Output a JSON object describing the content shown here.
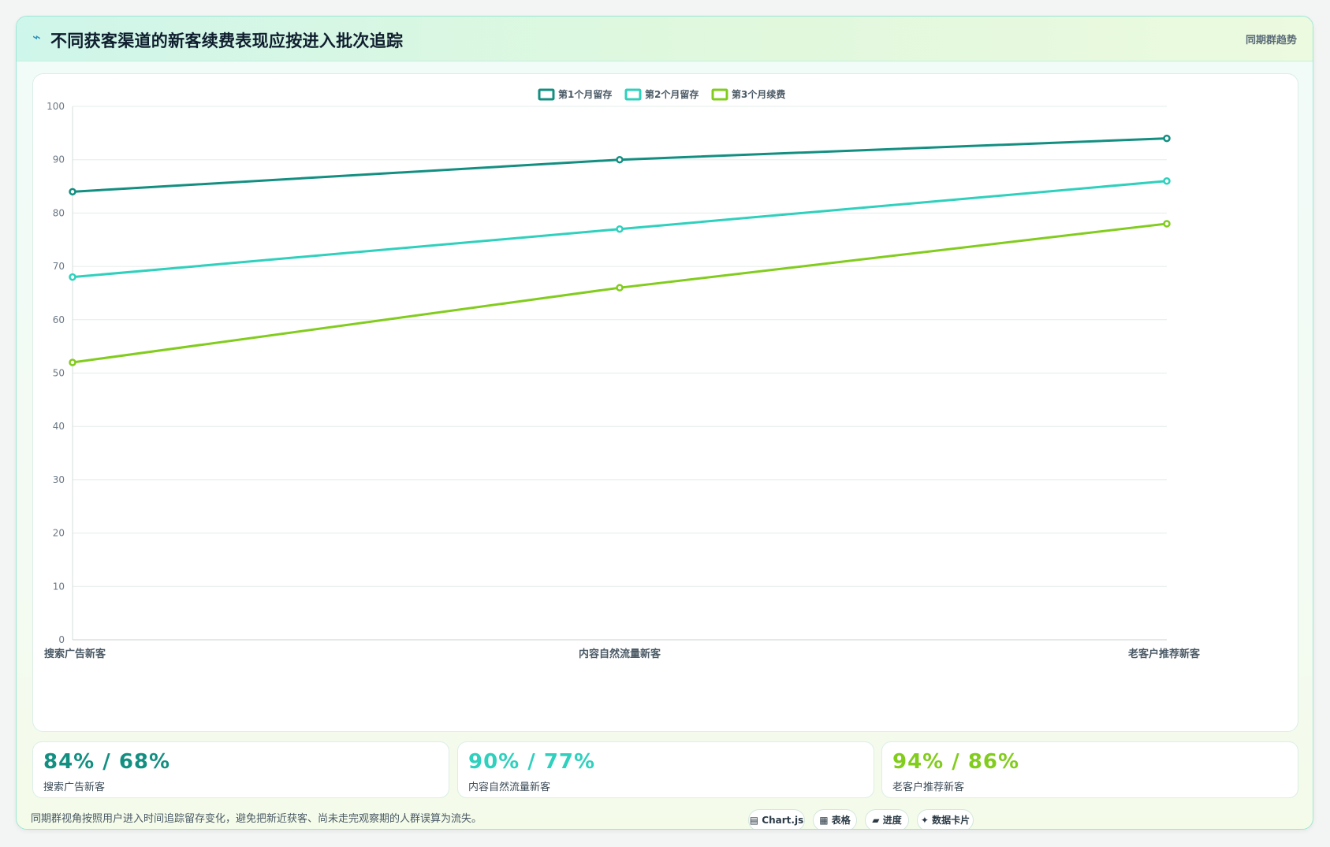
{
  "header": {
    "icon": "⌁",
    "title": "不同获客渠道的新客续费表现应按进入批次追踪",
    "tag": "同期群趋势"
  },
  "chart_data": {
    "type": "line",
    "categories": [
      "搜索广告新客",
      "内容自然流量新客",
      "老客户推荐新客"
    ],
    "series": [
      {
        "name": "第1个月留存",
        "values": [
          84,
          90,
          94
        ],
        "color": "#138f82"
      },
      {
        "name": "第2个月留存",
        "values": [
          68,
          77,
          86
        ],
        "color": "#2fd0bd"
      },
      {
        "name": "第3个月续费",
        "values": [
          52,
          66,
          78
        ],
        "color": "#82cc1d"
      }
    ],
    "ylim": [
      0,
      100
    ],
    "yticks": [
      0,
      10,
      20,
      30,
      40,
      50,
      60,
      70,
      80,
      90,
      100
    ],
    "grid": true,
    "legend": "top-center"
  },
  "stats": [
    {
      "value": "84% / 68%",
      "label": "搜索广告新客",
      "color": "#138f82"
    },
    {
      "value": "90% / 77%",
      "label": "内容自然流量新客",
      "color": "#2fd0bd"
    },
    {
      "value": "94% / 86%",
      "label": "老客户推荐新客",
      "color": "#82cc1d"
    }
  ],
  "footer": {
    "note": "同期群视角按照用户进入时间追踪留存变化，避免把新近获客、尚未走完观察期的人群误算为流失。",
    "chips": [
      {
        "label": "▤ Chart.js",
        "icon": "chart-icon"
      },
      {
        "label": "▦ 表格",
        "icon": "table-icon"
      },
      {
        "label": "▰ 进度",
        "icon": "progress-icon"
      },
      {
        "label": "✦ 数据卡片",
        "icon": "sparkle-icon"
      }
    ]
  }
}
